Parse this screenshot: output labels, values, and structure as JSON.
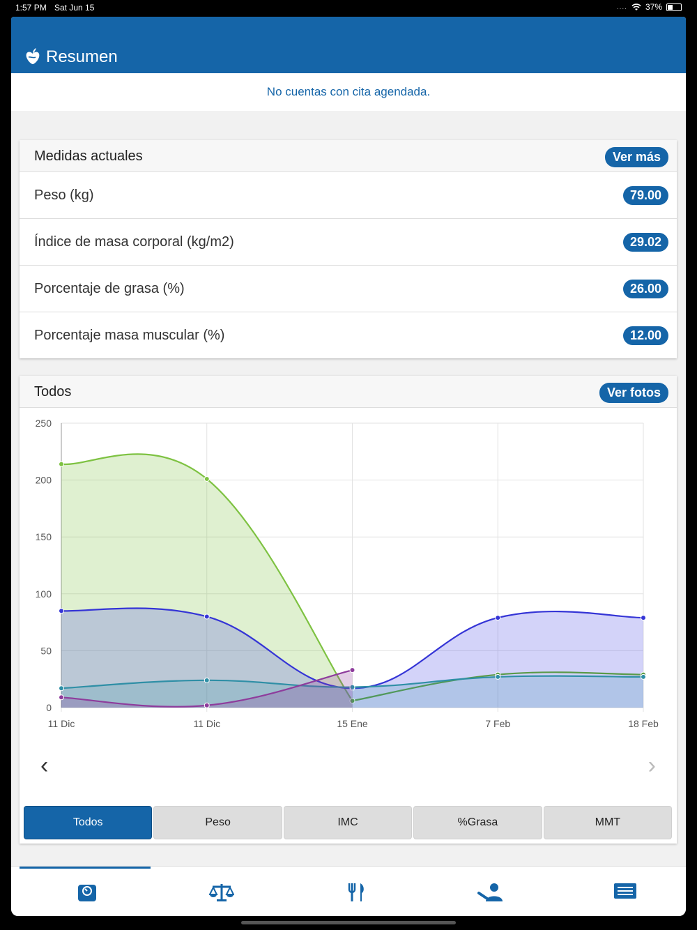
{
  "status": {
    "time": "1:57 PM",
    "date": "Sat Jun 15",
    "battery": "37%",
    "battery_level": 0.37
  },
  "header": {
    "title": "Resumen",
    "logo_icon": "apple-heart-icon"
  },
  "notice": "No cuentas con cita agendada.",
  "medidas": {
    "title": "Medidas actuales",
    "button": "Ver más",
    "rows": [
      {
        "label": "Peso (kg)",
        "value": "79.00"
      },
      {
        "label": "Índice de masa corporal (kg/m2)",
        "value": "29.02"
      },
      {
        "label": "Porcentaje de grasa (%)",
        "value": "26.00"
      },
      {
        "label": "Porcentaje masa muscular (%)",
        "value": "12.00"
      }
    ]
  },
  "todos": {
    "title": "Todos",
    "button": "Ver fotos"
  },
  "segments": [
    "Todos",
    "Peso",
    "IMC",
    "%Grasa",
    "MMT"
  ],
  "tabs": [
    "scale-dashboard-icon",
    "balance-icon",
    "fork-knife-icon",
    "user-profile-icon",
    "news-list-icon"
  ],
  "chart_data": {
    "type": "area",
    "categories": [
      "11 Dic",
      "11 Dic",
      "15 Ene",
      "7 Feb",
      "18 Feb"
    ],
    "ylim": [
      0,
      250
    ],
    "yticks": [
      "250",
      "200",
      "150",
      "100",
      "50",
      "0"
    ],
    "grid": true,
    "series": [
      {
        "color": "#7ec242",
        "fill": "rgba(126,194,66,0.25)",
        "values": [
          214,
          201,
          6,
          null,
          null
        ]
      },
      {
        "color": "#3535d6",
        "fill": "rgba(80,80,230,0.25)",
        "values": [
          85,
          80,
          17,
          79,
          79
        ]
      },
      {
        "color": "#5a9a48",
        "fill": "rgba(90,154,72,0.0)",
        "values": [
          null,
          null,
          6,
          29,
          29
        ]
      },
      {
        "color": "#2f8fa6",
        "fill": "rgba(47,143,166,0.2)",
        "values": [
          17,
          24,
          18,
          27,
          27
        ]
      },
      {
        "color": "#8e3c9c",
        "fill": "rgba(142,60,156,0.25)",
        "values": [
          9,
          2,
          33,
          null,
          null
        ]
      }
    ]
  }
}
